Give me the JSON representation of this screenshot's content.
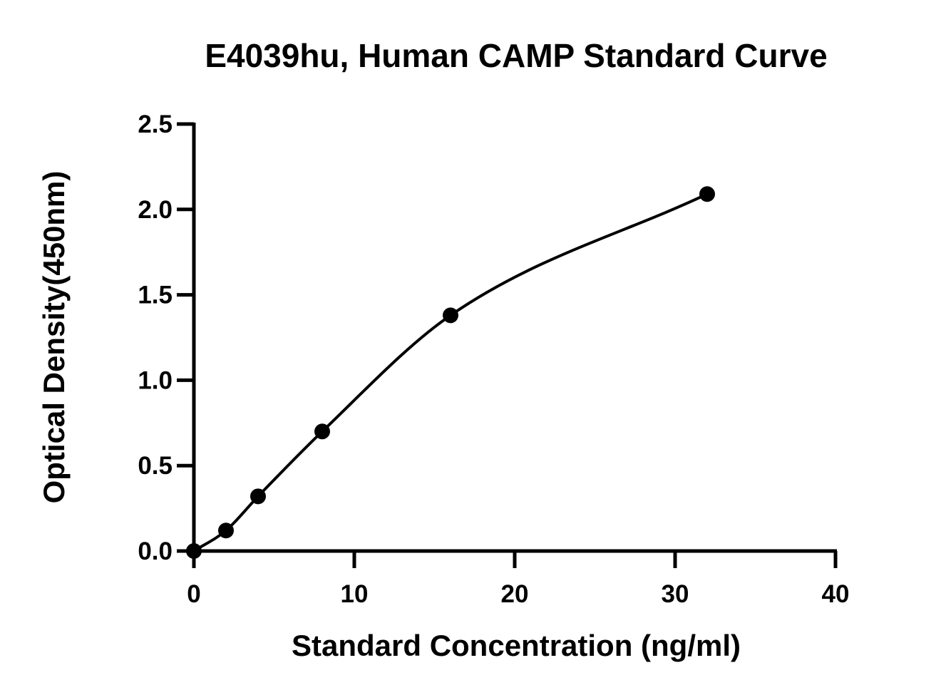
{
  "chart_data": {
    "type": "scatter",
    "title": "E4039hu, Human CAMP Standard Curve",
    "x_label": "Standard Concentration (ng/ml)",
    "y_label": "Optical Density(450nm)",
    "x": [
      0,
      2,
      4,
      8,
      16,
      32
    ],
    "series": [
      {
        "color": "#000000",
        "values": [
          0.0,
          0.12,
          0.32,
          0.7,
          1.38,
          2.09
        ]
      }
    ],
    "smooth_line": true,
    "xlim": [
      0,
      40
    ],
    "xticks": [
      0,
      10,
      20,
      30,
      40
    ],
    "ylim": [
      0,
      2.5
    ],
    "yticks": [
      {
        "value": 0,
        "label": "0.0"
      },
      {
        "value": 0.5,
        "label": "0.5"
      },
      {
        "value": 1,
        "label": "1.0"
      },
      {
        "value": 1.5,
        "label": "1.5"
      },
      {
        "value": 2,
        "label": "2.0"
      },
      {
        "value": 2.5,
        "label": "2.5"
      }
    ]
  }
}
